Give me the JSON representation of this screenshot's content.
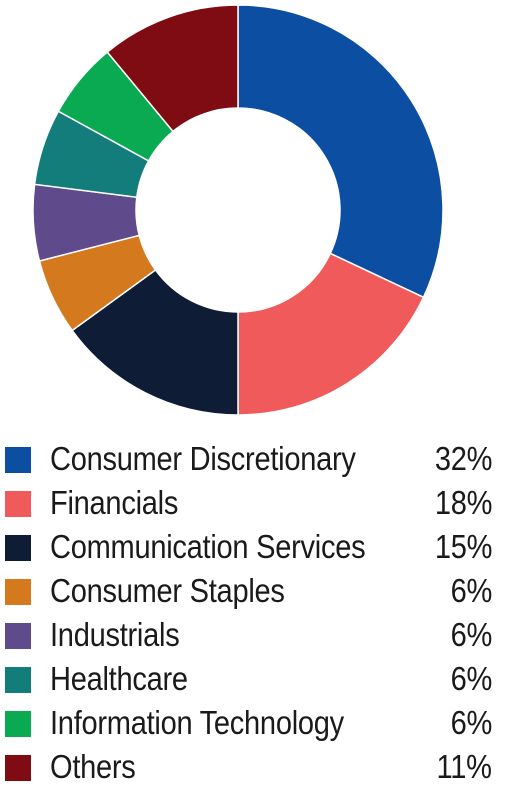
{
  "chart_data": {
    "type": "pie",
    "title": "",
    "slices": [
      {
        "label": "Consumer Discretionary",
        "value": 32,
        "display": "32%",
        "color": "#0b4ea2"
      },
      {
        "label": "Financials",
        "value": 18,
        "display": "18%",
        "color": "#f05a5a"
      },
      {
        "label": "Communication Services",
        "value": 15,
        "display": "15%",
        "color": "#0f1c36"
      },
      {
        "label": "Consumer Staples",
        "value": 6,
        "display": "6%",
        "color": "#d5791f"
      },
      {
        "label": "Industrials",
        "value": 6,
        "display": "6%",
        "color": "#5f4a8c"
      },
      {
        "label": "Healthcare",
        "value": 6,
        "display": "6%",
        "color": "#127d7a"
      },
      {
        "label": "Information Technology",
        "value": 6,
        "display": "6%",
        "color": "#0aaa52"
      },
      {
        "label": "Others",
        "value": 11,
        "display": "11%",
        "color": "#7e0c12"
      }
    ],
    "legend_position": "bottom"
  }
}
